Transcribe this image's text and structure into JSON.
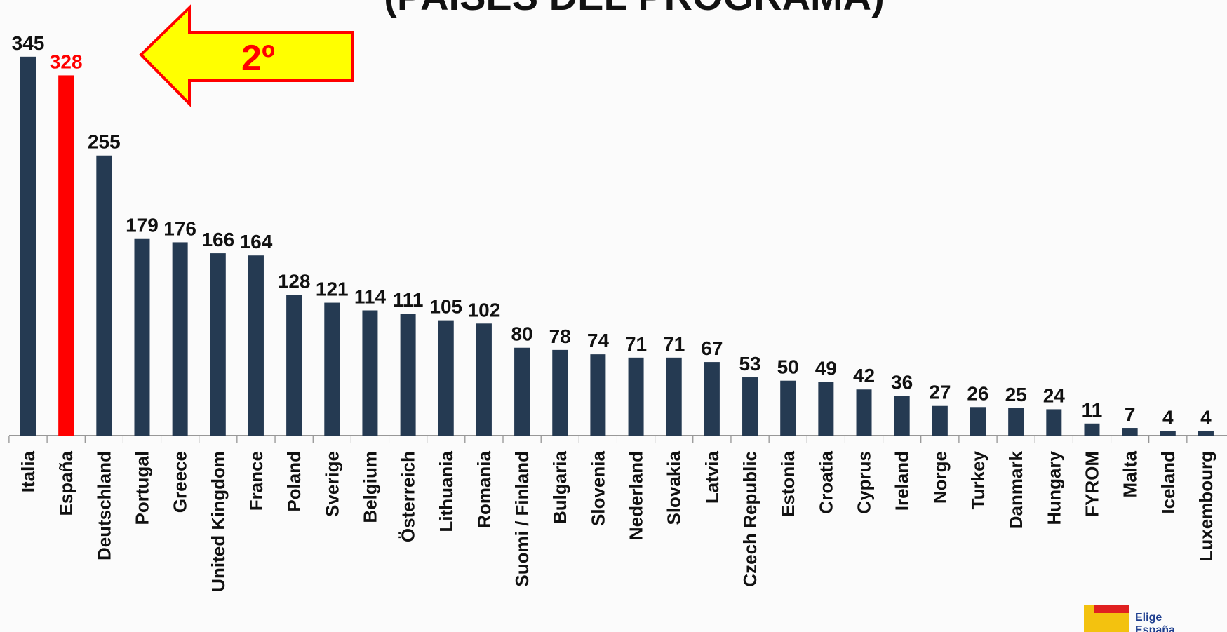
{
  "chart_data": {
    "type": "bar",
    "title": "(PAÍSES DEL PROGRAMA)",
    "annotation": "2º",
    "categories": [
      "Italia",
      "España",
      "Deutschland",
      "Portugal",
      "Greece",
      "United Kingdom",
      "France",
      "Poland",
      "Sverige",
      "Belgium",
      "Österreich",
      "Lithuania",
      "Romania",
      "Suomi / Finland",
      "Bulgaria",
      "Slovenia",
      "Nederland",
      "Slovakia",
      "Latvia",
      "Czech Republic",
      "Estonia",
      "Croatia",
      "Cyprus",
      "Ireland",
      "Norge",
      "Turkey",
      "Danmark",
      "Hungary",
      "FYROM",
      "Malta",
      "Iceland",
      "Luxembourg"
    ],
    "values": [
      345,
      328,
      255,
      179,
      176,
      166,
      164,
      128,
      121,
      114,
      111,
      105,
      102,
      80,
      78,
      74,
      71,
      71,
      67,
      53,
      50,
      49,
      42,
      36,
      27,
      26,
      25,
      24,
      11,
      7,
      4,
      4
    ],
    "colors": [
      "#253a52",
      "#ff0000",
      "#253a52",
      "#253a52",
      "#253a52",
      "#253a52",
      "#253a52",
      "#253a52",
      "#253a52",
      "#253a52",
      "#253a52",
      "#253a52",
      "#253a52",
      "#253a52",
      "#253a52",
      "#253a52",
      "#253a52",
      "#253a52",
      "#253a52",
      "#253a52",
      "#253a52",
      "#253a52",
      "#253a52",
      "#253a52",
      "#253a52",
      "#253a52",
      "#253a52",
      "#253a52",
      "#253a52",
      "#253a52",
      "#253a52",
      "#253a52"
    ],
    "ylim": [
      0,
      350
    ]
  },
  "logo": {
    "line1": "Elige",
    "line2": "España"
  }
}
